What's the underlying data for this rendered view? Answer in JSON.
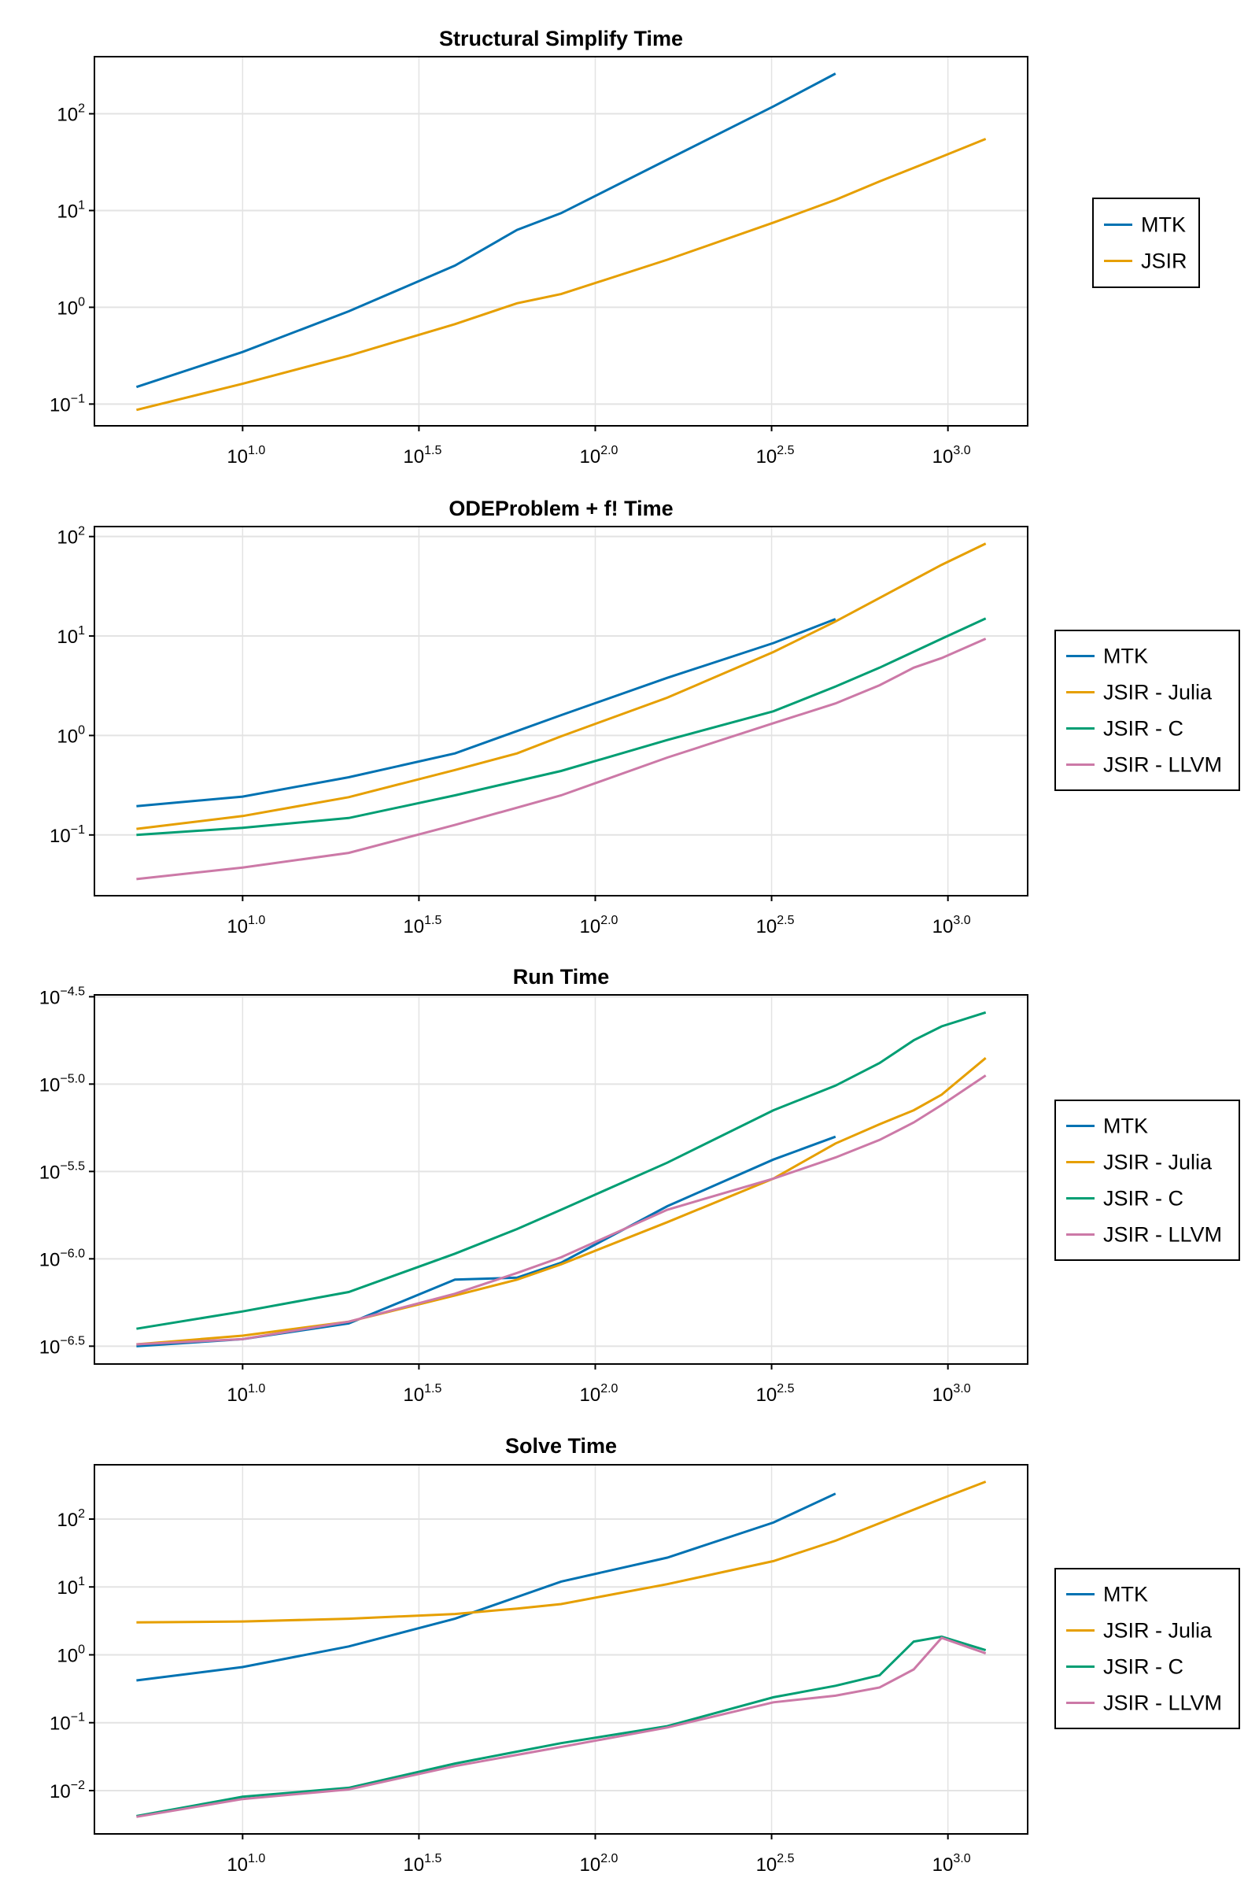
{
  "xaxis": {
    "scale": "log10",
    "xlim": [
      3.8,
      1683
    ],
    "tick_base": "10",
    "tick_exponents": [
      "1.0",
      "1.5",
      "2.0",
      "2.5",
      "3.0"
    ],
    "tick_values": [
      10,
      31.62,
      100,
      316.2,
      1000
    ]
  },
  "colors": {
    "MTK": "#0072b2",
    "JSIR": "#e69f00",
    "JSIR - Julia": "#e69f00",
    "JSIR - C": "#009e73",
    "JSIR - LLVM": "#cc79a7"
  },
  "chart_data": [
    {
      "type": "line",
      "title": "Structural Simplify Time",
      "yscale": "log10",
      "ylim": [
        0.0596,
        389
      ],
      "grid": true,
      "legend": "right",
      "yticks": {
        "base": "10",
        "exponents": [
          "2",
          "1",
          "0",
          "−1"
        ],
        "values": [
          100,
          10,
          1,
          0.1
        ]
      },
      "series": [
        {
          "name": "MTK",
          "x": [
            5,
            10,
            20,
            40,
            60,
            80,
            160,
            320,
            480
          ],
          "y": [
            0.15,
            0.345,
            0.91,
            2.7,
            6.3,
            9.4,
            33.5,
            119,
            260
          ]
        },
        {
          "name": "JSIR",
          "x": [
            5,
            10,
            20,
            40,
            60,
            80,
            160,
            320,
            480,
            640,
            960,
            1280
          ],
          "y": [
            0.087,
            0.162,
            0.316,
            0.67,
            1.1,
            1.37,
            3.1,
            7.5,
            12.9,
            20,
            36,
            55
          ]
        }
      ]
    },
    {
      "type": "line",
      "title": "ODEProblem + f! Time",
      "yscale": "log10",
      "ylim": [
        0.0245,
        126
      ],
      "grid": true,
      "legend": "right",
      "yticks": {
        "base": "10",
        "exponents": [
          "2",
          "1",
          "0",
          "−1"
        ],
        "values": [
          100,
          10,
          1,
          0.1
        ]
      },
      "series": [
        {
          "name": "MTK",
          "x": [
            5,
            10,
            20,
            40,
            80,
            160,
            320,
            480
          ],
          "y": [
            0.195,
            0.243,
            0.38,
            0.66,
            1.6,
            3.8,
            8.5,
            14.8
          ]
        },
        {
          "name": "JSIR - Julia",
          "x": [
            5,
            10,
            20,
            40,
            60,
            80,
            160,
            320,
            480,
            960,
            1280
          ],
          "y": [
            0.115,
            0.155,
            0.24,
            0.45,
            0.66,
            0.98,
            2.4,
            6.9,
            14,
            52,
            85
          ]
        },
        {
          "name": "JSIR - C",
          "x": [
            5,
            10,
            20,
            40,
            80,
            160,
            320,
            480,
            640,
            960,
            1280
          ],
          "y": [
            0.1,
            0.118,
            0.148,
            0.25,
            0.44,
            0.9,
            1.75,
            3.1,
            4.8,
            9.4,
            15
          ]
        },
        {
          "name": "JSIR - LLVM",
          "x": [
            5,
            10,
            20,
            40,
            80,
            160,
            320,
            480,
            640,
            800,
            960,
            1280
          ],
          "y": [
            0.036,
            0.047,
            0.066,
            0.126,
            0.25,
            0.6,
            1.33,
            2.1,
            3.2,
            4.8,
            6,
            9.4
          ]
        }
      ]
    },
    {
      "type": "line",
      "title": "Run Time",
      "yscale": "log10",
      "ylim": [
        2.5e-07,
        3.24e-05
      ],
      "grid": true,
      "legend": "right",
      "yticks": {
        "base": "10",
        "exponents": [
          "−4.5",
          "−5.0",
          "−5.5",
          "−6.0",
          "−6.5"
        ],
        "values": [
          3.162e-05,
          1e-05,
          3.162e-06,
          1e-06,
          3.162e-07
        ]
      },
      "series": [
        {
          "name": "MTK",
          "x": [
            5,
            10,
            20,
            40,
            60,
            80,
            160,
            320,
            480
          ],
          "y": [
            3.16e-07,
            3.47e-07,
            4.27e-07,
            7.6e-07,
            7.8e-07,
            9.5e-07,
            2e-06,
            3.7e-06,
            5e-06
          ]
        },
        {
          "name": "JSIR - Julia",
          "x": [
            5,
            10,
            20,
            40,
            60,
            80,
            160,
            320,
            480,
            640,
            800,
            960,
            1280
          ],
          "y": [
            3.24e-07,
            3.63e-07,
            4.37e-07,
            6.17e-07,
            7.6e-07,
            9.3e-07,
            1.62e-06,
            2.88e-06,
            4.57e-06,
            5.89e-06,
            7.08e-06,
            8.7e-06,
            1.41e-05
          ]
        },
        {
          "name": "JSIR - C",
          "x": [
            5,
            10,
            20,
            40,
            60,
            80,
            160,
            320,
            480,
            640,
            800,
            960,
            1280
          ],
          "y": [
            3.98e-07,
            5e-07,
            6.46e-07,
            1.07e-06,
            1.48e-06,
            1.91e-06,
            3.55e-06,
            7.08e-06,
            9.8e-06,
            1.32e-05,
            1.78e-05,
            2.14e-05,
            2.57e-05
          ]
        },
        {
          "name": "JSIR - LLVM",
          "x": [
            5,
            10,
            20,
            40,
            60,
            80,
            160,
            320,
            480,
            640,
            800,
            960,
            1280
          ],
          "y": [
            3.24e-07,
            3.47e-07,
            4.37e-07,
            6.31e-07,
            8.3e-07,
            1.02e-06,
            1.91e-06,
            2.88e-06,
            3.8e-06,
            4.79e-06,
            6.03e-06,
            7.59e-06,
            1.12e-05
          ]
        }
      ]
    },
    {
      "type": "line",
      "title": "Solve Time",
      "yscale": "log10",
      "ylim": [
        0.0023,
        631
      ],
      "grid": true,
      "legend": "right",
      "yticks": {
        "base": "10",
        "exponents": [
          "2",
          "1",
          "0",
          "−1",
          "−2"
        ],
        "values": [
          100,
          10,
          1,
          0.1,
          0.01
        ]
      },
      "series": [
        {
          "name": "MTK",
          "x": [
            5,
            10,
            20,
            40,
            80,
            160,
            320,
            480
          ],
          "y": [
            0.42,
            0.66,
            1.33,
            3.4,
            12,
            27,
            89,
            237
          ]
        },
        {
          "name": "JSIR - Julia",
          "x": [
            5,
            10,
            20,
            40,
            60,
            80,
            160,
            320,
            480,
            960,
            1280
          ],
          "y": [
            3.0,
            3.1,
            3.4,
            4.0,
            4.8,
            5.6,
            11,
            24,
            48,
            200,
            355
          ]
        },
        {
          "name": "JSIR - C",
          "x": [
            5,
            10,
            20,
            40,
            80,
            160,
            320,
            480,
            640,
            800,
            960,
            1280
          ],
          "y": [
            0.0042,
            0.0081,
            0.011,
            0.025,
            0.05,
            0.089,
            0.237,
            0.35,
            0.5,
            1.57,
            1.85,
            1.17
          ]
        },
        {
          "name": "JSIR - LLVM",
          "x": [
            5,
            10,
            20,
            40,
            80,
            160,
            320,
            480,
            640,
            800,
            960,
            1280
          ],
          "y": [
            0.0041,
            0.0075,
            0.0104,
            0.023,
            0.044,
            0.085,
            0.2,
            0.25,
            0.33,
            0.61,
            1.78,
            1.05
          ]
        }
      ]
    }
  ]
}
